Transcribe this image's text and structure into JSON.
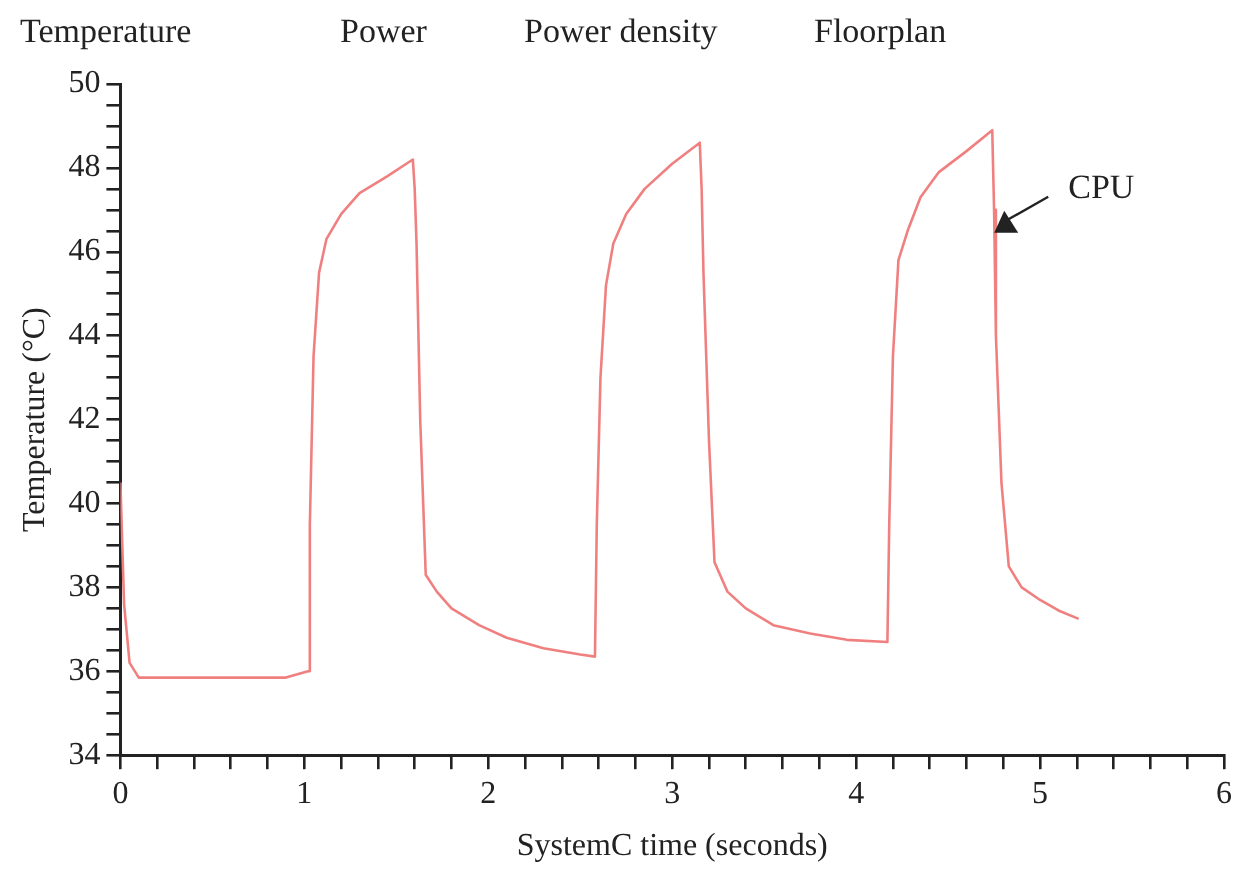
{
  "chart_data": {
    "type": "line",
    "xlabel": "SystemC time (seconds)",
    "ylabel": "Temperature (°C)",
    "annotations": [
      "Temperature",
      "Power",
      "Power density",
      "Floorplan"
    ],
    "xlim": [
      0,
      6
    ],
    "ylim": [
      34,
      50
    ],
    "xticks": [
      0,
      {
        "value": 0.2,
        "label": null
      },
      {
        "value": 0.4,
        "label": null
      },
      {
        "value": 0.6,
        "label": null
      },
      {
        "value": 0.8,
        "label": null
      },
      1,
      {
        "value": 1.2,
        "label": null
      },
      {
        "value": 1.4,
        "label": null
      },
      {
        "value": 1.6,
        "label": null
      },
      {
        "value": 1.8,
        "label": null
      },
      2,
      {
        "value": 2.2,
        "label": null
      },
      {
        "value": 2.4,
        "label": null
      },
      {
        "value": 2.6,
        "label": null
      },
      {
        "value": 2.8,
        "label": null
      },
      3,
      {
        "value": 3.2,
        "label": null
      },
      {
        "value": 3.4,
        "label": null
      },
      {
        "value": 3.6,
        "label": null
      },
      {
        "value": 3.8,
        "label": null
      },
      4,
      {
        "value": 4.2,
        "label": null
      },
      {
        "value": 4.4,
        "label": null
      },
      {
        "value": 4.6,
        "label": null
      },
      {
        "value": 4.8,
        "label": null
      },
      5,
      {
        "value": 5.2,
        "label": null
      },
      {
        "value": 5.4,
        "label": null
      },
      {
        "value": 5.6,
        "label": null
      },
      {
        "value": 5.8,
        "label": null
      },
      6
    ],
    "yticks": [
      34,
      {
        "value": 34.5,
        "label": null
      },
      {
        "value": 35,
        "label": null
      },
      {
        "value": 35.5,
        "label": null
      },
      36,
      {
        "value": 36.5,
        "label": null
      },
      {
        "value": 37,
        "label": null
      },
      {
        "value": 37.5,
        "label": null
      },
      38,
      {
        "value": 38.5,
        "label": null
      },
      {
        "value": 39,
        "label": null
      },
      {
        "value": 39.5,
        "label": null
      },
      40,
      {
        "value": 40.5,
        "label": null
      },
      {
        "value": 41,
        "label": null
      },
      {
        "value": 41.5,
        "label": null
      },
      42,
      {
        "value": 42.5,
        "label": null
      },
      {
        "value": 43,
        "label": null
      },
      {
        "value": 43.5,
        "label": null
      },
      44,
      {
        "value": 44.5,
        "label": null
      },
      {
        "value": 45,
        "label": null
      },
      {
        "value": 45.5,
        "label": null
      },
      46,
      {
        "value": 46.5,
        "label": null
      },
      {
        "value": 47,
        "label": null
      },
      {
        "value": 47.5,
        "label": null
      },
      48,
      {
        "value": 48.5,
        "label": null
      },
      {
        "value": 49,
        "label": null
      },
      {
        "value": 49.5,
        "label": null
      },
      50
    ],
    "grid": false,
    "legend": false,
    "marker": "none",
    "line_style": "solid",
    "series": [
      {
        "name": "CPU",
        "color": "#f08080",
        "x": [
          0,
          0.02,
          0.05,
          0.1,
          0.3,
          0.6,
          0.9,
          1.02,
          1.03,
          1.05,
          1.08,
          1.12,
          1.2,
          1.3,
          1.45,
          1.59,
          1.6,
          1.61,
          1.63,
          1.66,
          1.72,
          1.8,
          1.95,
          2.1,
          2.3,
          2.5,
          2.58,
          2.59,
          2.61,
          2.64,
          2.68,
          2.75,
          2.85,
          3.0,
          3.15,
          3.16,
          3.17,
          3.2,
          3.23,
          3.3,
          3.4,
          3.55,
          3.75,
          3.95,
          4.17,
          4.18,
          4.2,
          4.23,
          4.28,
          4.35,
          4.45,
          4.6,
          4.74,
          4.75,
          4.76,
          4.79,
          4.83,
          4.9,
          5.0,
          5.1,
          5.21
        ],
        "values": [
          40.5,
          37.6,
          36.2,
          35.85,
          35.85,
          35.85,
          35.85,
          36.0,
          39.5,
          43.5,
          45.5,
          46.3,
          46.9,
          47.4,
          47.8,
          48.2,
          47.5,
          46.2,
          42,
          38.3,
          37.9,
          37.5,
          37.1,
          36.8,
          36.55,
          36.4,
          36.35,
          39.5,
          43,
          45.2,
          46.2,
          46.9,
          47.5,
          48.1,
          48.6,
          47.5,
          45.5,
          41.5,
          38.6,
          37.9,
          37.5,
          37.1,
          36.9,
          36.75,
          36.7,
          39.5,
          43.5,
          45.8,
          46.5,
          47.3,
          47.9,
          48.4,
          48.9,
          47,
          44,
          40.5,
          38.5,
          38,
          37.7,
          37.45,
          37.25
        ]
      }
    ]
  }
}
